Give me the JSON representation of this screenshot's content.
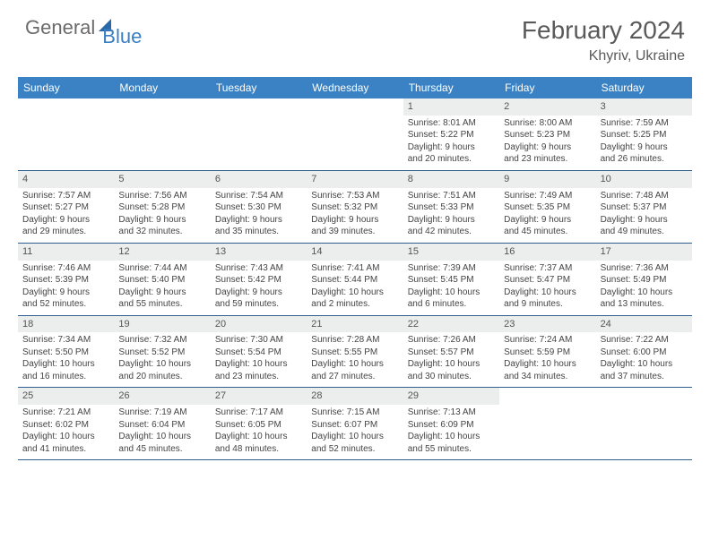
{
  "header": {
    "logo_gray": "General",
    "logo_blue": "Blue",
    "month_title": "February 2024",
    "location": "Khyriv, Ukraine"
  },
  "colors": {
    "header_bar": "#3a82c4",
    "daynum_bg": "#eceded",
    "week_divider": "#2f5f8f",
    "logo_blue": "#3a7fc4",
    "text_gray": "#5a5a5a"
  },
  "day_names": [
    "Sunday",
    "Monday",
    "Tuesday",
    "Wednesday",
    "Thursday",
    "Friday",
    "Saturday"
  ],
  "weeks": [
    [
      {
        "day": "",
        "lines": []
      },
      {
        "day": "",
        "lines": []
      },
      {
        "day": "",
        "lines": []
      },
      {
        "day": "",
        "lines": []
      },
      {
        "day": "1",
        "lines": [
          "Sunrise: 8:01 AM",
          "Sunset: 5:22 PM",
          "Daylight: 9 hours",
          "and 20 minutes."
        ]
      },
      {
        "day": "2",
        "lines": [
          "Sunrise: 8:00 AM",
          "Sunset: 5:23 PM",
          "Daylight: 9 hours",
          "and 23 minutes."
        ]
      },
      {
        "day": "3",
        "lines": [
          "Sunrise: 7:59 AM",
          "Sunset: 5:25 PM",
          "Daylight: 9 hours",
          "and 26 minutes."
        ]
      }
    ],
    [
      {
        "day": "4",
        "lines": [
          "Sunrise: 7:57 AM",
          "Sunset: 5:27 PM",
          "Daylight: 9 hours",
          "and 29 minutes."
        ]
      },
      {
        "day": "5",
        "lines": [
          "Sunrise: 7:56 AM",
          "Sunset: 5:28 PM",
          "Daylight: 9 hours",
          "and 32 minutes."
        ]
      },
      {
        "day": "6",
        "lines": [
          "Sunrise: 7:54 AM",
          "Sunset: 5:30 PM",
          "Daylight: 9 hours",
          "and 35 minutes."
        ]
      },
      {
        "day": "7",
        "lines": [
          "Sunrise: 7:53 AM",
          "Sunset: 5:32 PM",
          "Daylight: 9 hours",
          "and 39 minutes."
        ]
      },
      {
        "day": "8",
        "lines": [
          "Sunrise: 7:51 AM",
          "Sunset: 5:33 PM",
          "Daylight: 9 hours",
          "and 42 minutes."
        ]
      },
      {
        "day": "9",
        "lines": [
          "Sunrise: 7:49 AM",
          "Sunset: 5:35 PM",
          "Daylight: 9 hours",
          "and 45 minutes."
        ]
      },
      {
        "day": "10",
        "lines": [
          "Sunrise: 7:48 AM",
          "Sunset: 5:37 PM",
          "Daylight: 9 hours",
          "and 49 minutes."
        ]
      }
    ],
    [
      {
        "day": "11",
        "lines": [
          "Sunrise: 7:46 AM",
          "Sunset: 5:39 PM",
          "Daylight: 9 hours",
          "and 52 minutes."
        ]
      },
      {
        "day": "12",
        "lines": [
          "Sunrise: 7:44 AM",
          "Sunset: 5:40 PM",
          "Daylight: 9 hours",
          "and 55 minutes."
        ]
      },
      {
        "day": "13",
        "lines": [
          "Sunrise: 7:43 AM",
          "Sunset: 5:42 PM",
          "Daylight: 9 hours",
          "and 59 minutes."
        ]
      },
      {
        "day": "14",
        "lines": [
          "Sunrise: 7:41 AM",
          "Sunset: 5:44 PM",
          "Daylight: 10 hours",
          "and 2 minutes."
        ]
      },
      {
        "day": "15",
        "lines": [
          "Sunrise: 7:39 AM",
          "Sunset: 5:45 PM",
          "Daylight: 10 hours",
          "and 6 minutes."
        ]
      },
      {
        "day": "16",
        "lines": [
          "Sunrise: 7:37 AM",
          "Sunset: 5:47 PM",
          "Daylight: 10 hours",
          "and 9 minutes."
        ]
      },
      {
        "day": "17",
        "lines": [
          "Sunrise: 7:36 AM",
          "Sunset: 5:49 PM",
          "Daylight: 10 hours",
          "and 13 minutes."
        ]
      }
    ],
    [
      {
        "day": "18",
        "lines": [
          "Sunrise: 7:34 AM",
          "Sunset: 5:50 PM",
          "Daylight: 10 hours",
          "and 16 minutes."
        ]
      },
      {
        "day": "19",
        "lines": [
          "Sunrise: 7:32 AM",
          "Sunset: 5:52 PM",
          "Daylight: 10 hours",
          "and 20 minutes."
        ]
      },
      {
        "day": "20",
        "lines": [
          "Sunrise: 7:30 AM",
          "Sunset: 5:54 PM",
          "Daylight: 10 hours",
          "and 23 minutes."
        ]
      },
      {
        "day": "21",
        "lines": [
          "Sunrise: 7:28 AM",
          "Sunset: 5:55 PM",
          "Daylight: 10 hours",
          "and 27 minutes."
        ]
      },
      {
        "day": "22",
        "lines": [
          "Sunrise: 7:26 AM",
          "Sunset: 5:57 PM",
          "Daylight: 10 hours",
          "and 30 minutes."
        ]
      },
      {
        "day": "23",
        "lines": [
          "Sunrise: 7:24 AM",
          "Sunset: 5:59 PM",
          "Daylight: 10 hours",
          "and 34 minutes."
        ]
      },
      {
        "day": "24",
        "lines": [
          "Sunrise: 7:22 AM",
          "Sunset: 6:00 PM",
          "Daylight: 10 hours",
          "and 37 minutes."
        ]
      }
    ],
    [
      {
        "day": "25",
        "lines": [
          "Sunrise: 7:21 AM",
          "Sunset: 6:02 PM",
          "Daylight: 10 hours",
          "and 41 minutes."
        ]
      },
      {
        "day": "26",
        "lines": [
          "Sunrise: 7:19 AM",
          "Sunset: 6:04 PM",
          "Daylight: 10 hours",
          "and 45 minutes."
        ]
      },
      {
        "day": "27",
        "lines": [
          "Sunrise: 7:17 AM",
          "Sunset: 6:05 PM",
          "Daylight: 10 hours",
          "and 48 minutes."
        ]
      },
      {
        "day": "28",
        "lines": [
          "Sunrise: 7:15 AM",
          "Sunset: 6:07 PM",
          "Daylight: 10 hours",
          "and 52 minutes."
        ]
      },
      {
        "day": "29",
        "lines": [
          "Sunrise: 7:13 AM",
          "Sunset: 6:09 PM",
          "Daylight: 10 hours",
          "and 55 minutes."
        ]
      },
      {
        "day": "",
        "lines": []
      },
      {
        "day": "",
        "lines": []
      }
    ]
  ]
}
